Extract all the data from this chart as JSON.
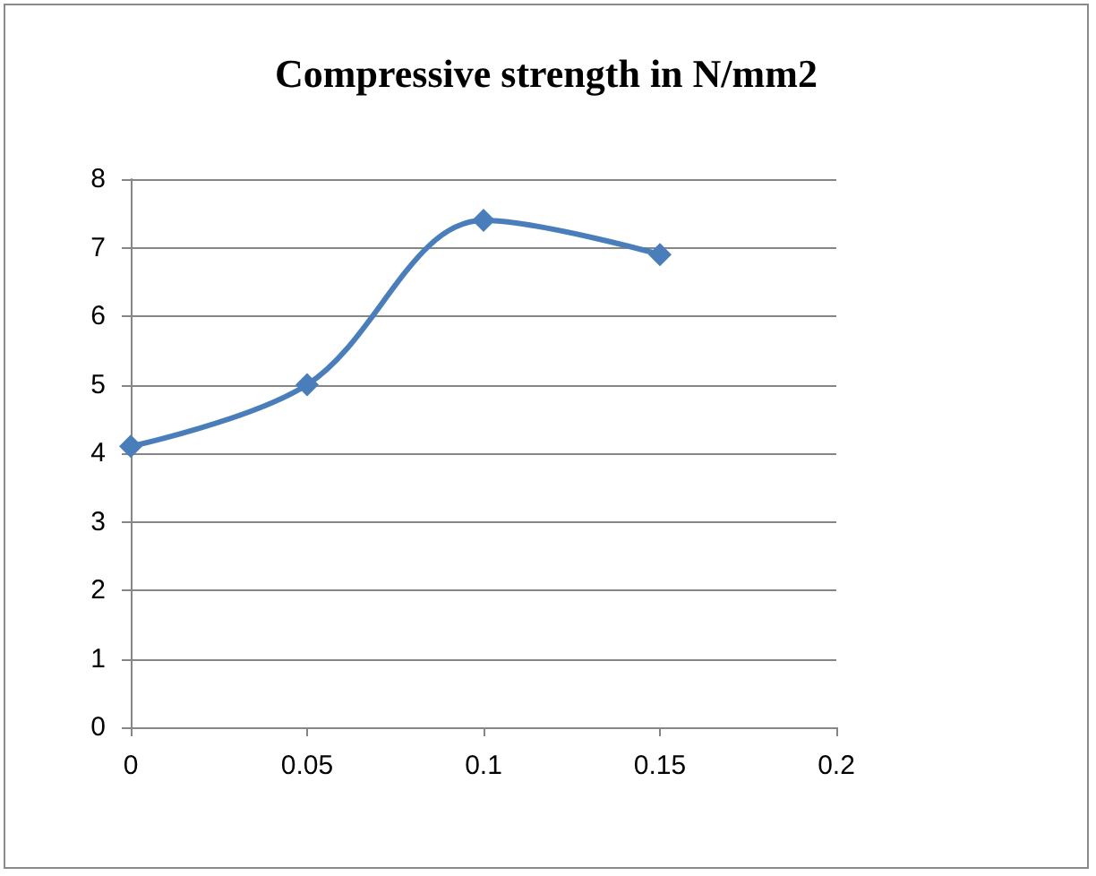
{
  "chart_data": {
    "type": "line",
    "title": "Compressive strength in N/mm2",
    "x": [
      0,
      0.05,
      0.1,
      0.15
    ],
    "series": [
      {
        "color": "#4a7ebb",
        "values": [
          4.1,
          5.0,
          7.4,
          6.9
        ]
      }
    ],
    "xlim": [
      0,
      0.2
    ],
    "xticks": [
      0,
      0.05,
      0.1,
      0.15,
      0.2
    ],
    "ylim": [
      0,
      8
    ],
    "yticks": [
      0,
      1,
      2,
      3,
      4,
      5,
      6,
      7,
      8
    ],
    "grid": "y",
    "marker": "diamond",
    "line_style": "solid"
  }
}
